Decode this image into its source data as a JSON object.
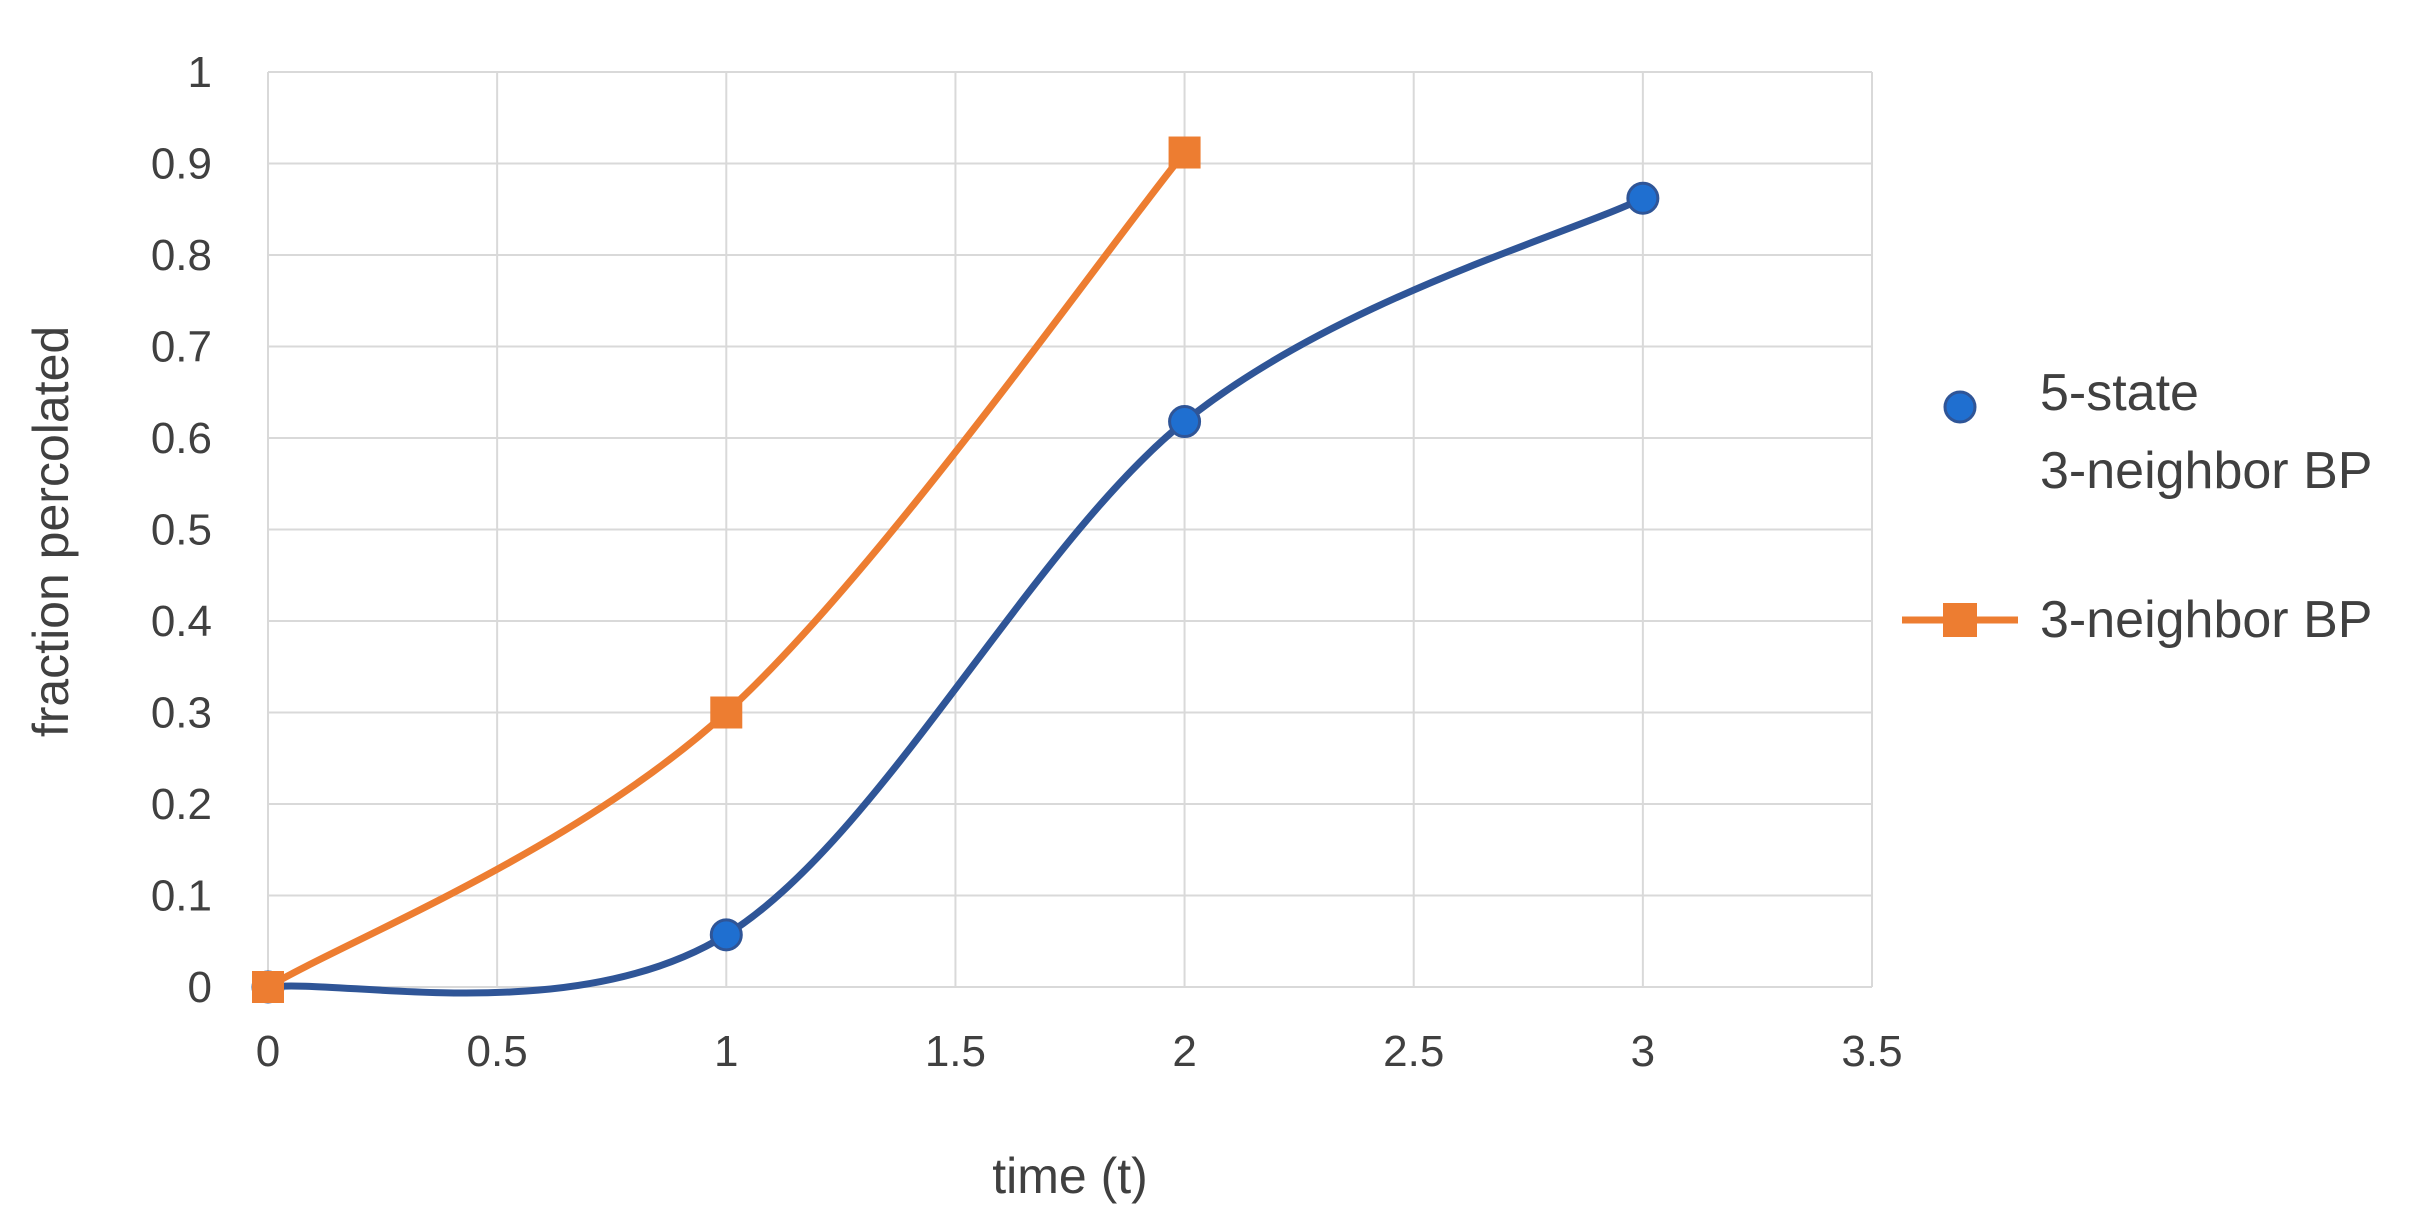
{
  "chart_data": {
    "type": "line",
    "title": "",
    "xlabel": "time (t)",
    "ylabel": "fraction percolated",
    "xlim": [
      0,
      3.5
    ],
    "ylim": [
      0,
      1
    ],
    "x_ticks": [
      "0",
      "0.5",
      "1",
      "1.5",
      "2",
      "2.5",
      "3",
      "3.5"
    ],
    "y_ticks": [
      "0",
      "0.1",
      "0.2",
      "0.3",
      "0.4",
      "0.5",
      "0.6",
      "0.7",
      "0.8",
      "0.9",
      "1"
    ],
    "grid": true,
    "legend_position": "right",
    "series": [
      {
        "name_lines": [
          "5-state",
          "3-neighbor BP"
        ],
        "marker": "circle",
        "color": "#2f5597",
        "marker_color": "#1f6fd0",
        "smooth": true,
        "legend_shows_line": false,
        "x": [
          0,
          1,
          2,
          3
        ],
        "y": [
          0,
          0.057,
          0.618,
          0.862
        ]
      },
      {
        "name_lines": [
          "3-neighbor BP"
        ],
        "marker": "square",
        "color": "#ed7d31",
        "marker_color": "#ed7d31",
        "smooth": true,
        "legend_shows_line": true,
        "x": [
          0,
          1,
          2
        ],
        "y": [
          0,
          0.3,
          0.912
        ]
      }
    ]
  }
}
